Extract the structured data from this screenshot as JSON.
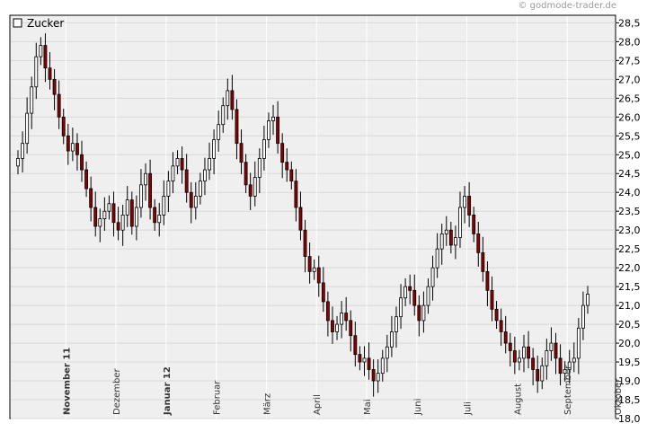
{
  "copyright": "© godmode-trader.de",
  "chart_data": {
    "type": "candlestick",
    "title": "",
    "legend": {
      "label": "Zucker",
      "placement": "top-left"
    },
    "y_axis": {
      "position": "right",
      "ylim": [
        18.0,
        28.7
      ],
      "ticks": [
        "18,0",
        "18,5",
        "19,0",
        "19,5",
        "20,0",
        "20,5",
        "21,0",
        "21,5",
        "22,0",
        "22,5",
        "23,0",
        "23,5",
        "24,0",
        "24,5",
        "25,0",
        "25,5",
        "26,0",
        "26,5",
        "27,0",
        "27,5",
        "28,0",
        "28,5"
      ]
    },
    "x_axis": {
      "labels": [
        {
          "text": "November 11",
          "bold": true,
          "index": 11
        },
        {
          "text": "Dezember",
          "bold": false,
          "index": 22
        },
        {
          "text": "Januar 12",
          "bold": true,
          "index": 33
        },
        {
          "text": "Februar",
          "bold": false,
          "index": 44
        },
        {
          "text": "März",
          "bold": false,
          "index": 55
        },
        {
          "text": "April",
          "bold": false,
          "index": 66
        },
        {
          "text": "Mai",
          "bold": false,
          "index": 77
        },
        {
          "text": "Juni",
          "bold": false,
          "index": 88
        },
        {
          "text": "Juli",
          "bold": false,
          "index": 99
        },
        {
          "text": "August",
          "bold": false,
          "index": 110
        },
        {
          "text": "September",
          "bold": false,
          "index": 121
        },
        {
          "text": "Oktober",
          "bold": false,
          "index": 132
        }
      ]
    },
    "grid": true,
    "colors": {
      "up": "#ffffff",
      "down": "#8b0000",
      "background": "#efefef",
      "grid": "#d8d8d8"
    },
    "series": [
      {
        "name": "Zucker",
        "closes": [
          24.9,
          25.3,
          26.1,
          26.8,
          27.6,
          27.9,
          27.3,
          27.0,
          26.6,
          26.0,
          25.5,
          25.1,
          25.3,
          25.0,
          24.6,
          24.1,
          23.6,
          23.1,
          23.3,
          23.5,
          23.7,
          23.2,
          23.0,
          23.4,
          23.8,
          23.1,
          23.6,
          24.2,
          24.5,
          23.6,
          23.2,
          23.4,
          23.9,
          24.3,
          24.7,
          24.9,
          24.6,
          24.0,
          23.6,
          23.9,
          24.3,
          24.6,
          24.9,
          25.4,
          25.8,
          26.3,
          26.7,
          26.2,
          25.3,
          24.8,
          24.2,
          23.9,
          24.4,
          24.9,
          25.4,
          25.9,
          26.0,
          25.3,
          24.8,
          24.6,
          24.3,
          23.6,
          23.0,
          22.3,
          21.9,
          22.0,
          21.6,
          21.1,
          20.6,
          20.3,
          20.5,
          20.8,
          20.6,
          20.2,
          19.7,
          19.5,
          19.6,
          19.3,
          19.0,
          19.2,
          19.6,
          19.9,
          20.3,
          20.7,
          21.2,
          21.5,
          21.4,
          21.0,
          20.6,
          21.0,
          21.5,
          22.0,
          22.5,
          22.9,
          23.0,
          22.6,
          22.8,
          23.6,
          23.9,
          23.4,
          22.9,
          22.4,
          21.9,
          21.4,
          20.9,
          20.6,
          20.3,
          20.0,
          19.8,
          19.5,
          19.6,
          19.9,
          19.6,
          19.3,
          19.0,
          19.4,
          19.8,
          20.0,
          19.6,
          19.2,
          19.3,
          19.5,
          19.6,
          20.4,
          21.0,
          21.3
        ]
      }
    ]
  }
}
